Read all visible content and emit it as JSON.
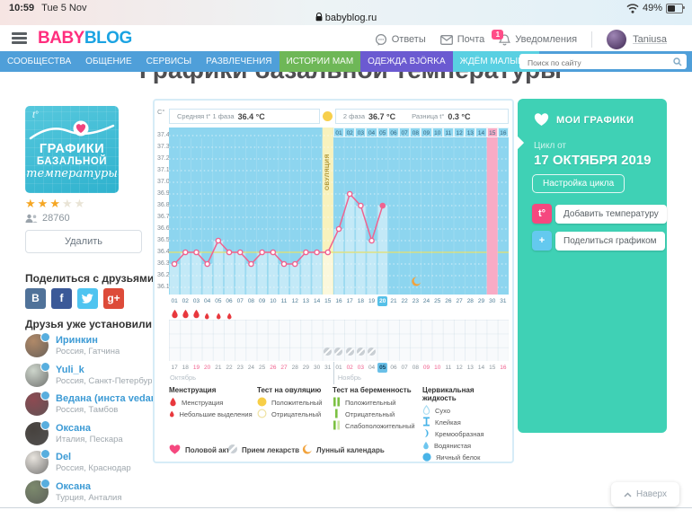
{
  "status_bar": {
    "time": "10:59",
    "date": "Tue 5 Nov",
    "url": "babyblog.ru",
    "battery": "49%"
  },
  "header": {
    "logo_part1": "BABY",
    "logo_part2": "BLOG",
    "menu": [
      {
        "icon": "chat-icon",
        "label": "Ответы"
      },
      {
        "icon": "mail-icon",
        "label": "Почта"
      },
      {
        "icon": "bell-icon",
        "label": "Уведомления",
        "badge": "1"
      }
    ],
    "user": {
      "name": "Taniusa"
    }
  },
  "nav": {
    "items": [
      {
        "label": "СООБЩЕСТВА"
      },
      {
        "label": "ОБЩЕНИЕ"
      },
      {
        "label": "СЕРВИСЫ"
      },
      {
        "label": "РАЗВЛЕЧЕНИЯ"
      },
      {
        "label": "ИСТОРИИ МАМ",
        "bg": "#6eb757"
      },
      {
        "label": "ОДЕЖДА BJÖRKA",
        "bg": "#6b5ad1"
      },
      {
        "label": "ЖДЁМ МАЛЫША",
        "bg": "#59d0e2"
      }
    ],
    "search_placeholder": "Поиск по сайту"
  },
  "page_title": "Графики базальной температуры",
  "sidebar": {
    "app_card": {
      "temp_symbol": "t°",
      "line1": "ГРАФИКИ",
      "line2": "БАЗАЛЬНОЙ",
      "line3": "температуры"
    },
    "rating": 3,
    "rating_max": 5,
    "installs": "28760",
    "delete_button": "Удалить",
    "share_heading": "Поделиться с друзьями",
    "social": [
      {
        "name": "vk",
        "bg": "#507299",
        "glyph": "B"
      },
      {
        "name": "facebook",
        "bg": "#3b5998",
        "glyph": "f"
      },
      {
        "name": "twitter",
        "bg": "#4fc4f0",
        "glyph": "bird"
      },
      {
        "name": "gplus",
        "bg": "#dd4b39",
        "glyph": "g+"
      }
    ],
    "friends_heading": "Друзья уже установили",
    "friends": [
      {
        "name": "Иринкин",
        "location": "Россия, Гатчина",
        "avatar_color": "#b08968"
      },
      {
        "name": "Yuli_k",
        "location": "Россия, Санкт-Петербур",
        "avatar_color": "#cdd5cb"
      },
      {
        "name": "Ведана (инста vedar",
        "location": "Россия, Тамбов",
        "avatar_color": "#8d4a52"
      },
      {
        "name": "Оксана",
        "location": "Италия, Пескара",
        "avatar_color": "#47423e"
      },
      {
        "name": "Del",
        "location": "Россия, Краснодар",
        "avatar_color": "#e8e4de"
      },
      {
        "name": "Оксана",
        "location": "Турция, Анталия",
        "avatar_color": "#7c8a6d"
      }
    ]
  },
  "chart_data": {
    "type": "line",
    "title": "График базальной температуры",
    "unit_label": "C°",
    "ylim": [
      36.1,
      37.4
    ],
    "yticks": [
      "37.4",
      "37.3",
      "37.2",
      "37.1",
      "37.0",
      "36.9",
      "36.8",
      "36.7",
      "36.6",
      "36.5",
      "36.4",
      "36.3",
      "36.2",
      "36.1"
    ],
    "days_in_cycle": 31,
    "temps_by_cycle_day": [
      36.3,
      36.4,
      36.4,
      36.3,
      36.5,
      36.4,
      36.4,
      36.3,
      36.4,
      36.4,
      36.3,
      36.3,
      36.4,
      36.4,
      36.4,
      36.6,
      36.9,
      36.8,
      36.5,
      36.8
    ],
    "today_cycle_day": 20,
    "ovulation_cycle_day": 15,
    "expected_period_cycle_day": 30,
    "avg_line_value": 36.4,
    "header_stats": {
      "avg1_label": "Средняя t° 1 фаза",
      "avg1_value": "36.4 °C",
      "avg2_label": "2 фаза",
      "avg2_value": "36.7 °C",
      "diff_label": "Разница t°",
      "diff_value": "0.3 °C"
    },
    "ovulation_label": "ОВУЛЯЦИЯ",
    "menstruation_heavy_days": [
      1,
      2,
      3
    ],
    "menstruation_light_days": [
      4,
      5,
      6
    ],
    "medication_days": [
      15,
      16,
      17,
      18,
      19
    ],
    "lunar_day": 23,
    "nov_day_headers": [
      "01",
      "02",
      "03",
      "04",
      "05",
      "06",
      "07",
      "08",
      "09",
      "10",
      "11",
      "12",
      "13",
      "14",
      "15",
      "16"
    ],
    "nov_header_period_day": "15",
    "calendar": {
      "month1_label": "Октябрь",
      "month2_label": "Ноябрь",
      "dates": [
        {
          "d": "17"
        },
        {
          "d": "18"
        },
        {
          "d": "19",
          "red": true
        },
        {
          "d": "20",
          "red": true
        },
        {
          "d": "21"
        },
        {
          "d": "22"
        },
        {
          "d": "23"
        },
        {
          "d": "24"
        },
        {
          "d": "25"
        },
        {
          "d": "26",
          "red": true
        },
        {
          "d": "27",
          "red": true
        },
        {
          "d": "28"
        },
        {
          "d": "29"
        },
        {
          "d": "30"
        },
        {
          "d": "31"
        },
        {
          "d": "01"
        },
        {
          "d": "02",
          "red": true
        },
        {
          "d": "03",
          "red": true
        },
        {
          "d": "04"
        },
        {
          "d": "05",
          "today": true
        },
        {
          "d": "06"
        },
        {
          "d": "07"
        },
        {
          "d": "08"
        },
        {
          "d": "09",
          "red": true
        },
        {
          "d": "10",
          "red": true
        },
        {
          "d": "11"
        },
        {
          "d": "12"
        },
        {
          "d": "13"
        },
        {
          "d": "14"
        },
        {
          "d": "15"
        },
        {
          "d": "16",
          "red": true
        }
      ]
    },
    "colors": {
      "plot_bg": "#8dd5ef",
      "bars_fill": "#c9eaf8",
      "line": "#ef6390",
      "ovulation_band": "#f8f2bd",
      "period_band": "#f8abc5",
      "avg_line": "#e6e06a"
    }
  },
  "legend": {
    "columns": [
      {
        "title": "Менструация",
        "items": [
          {
            "icon": "drop-large",
            "label": "Менструация"
          },
          {
            "icon": "drop-small",
            "label": "Небольшие выделения"
          }
        ]
      },
      {
        "title": "Тест на овуляцию",
        "items": [
          {
            "icon": "ovu-positive",
            "label": "Положительный"
          },
          {
            "icon": "ovu-negative",
            "label": "Отрицательный"
          }
        ]
      },
      {
        "title": "Тест на беременность",
        "items": [
          {
            "icon": "preg-positive",
            "label": "Положительный"
          },
          {
            "icon": "preg-negative",
            "label": "Отрицательный"
          },
          {
            "icon": "preg-weak",
            "label": "Слабоположительный"
          }
        ]
      },
      {
        "title": "Цервикальная жидкость",
        "items": [
          {
            "icon": "fluid-dry",
            "label": "Сухо"
          },
          {
            "icon": "fluid-sticky",
            "label": "Клейкая"
          },
          {
            "icon": "fluid-creamy",
            "label": "Кремообразная"
          },
          {
            "icon": "fluid-watery",
            "label": "Водянистая"
          },
          {
            "icon": "fluid-eggwhite",
            "label": "Яичный белок"
          }
        ]
      }
    ],
    "extra": [
      {
        "icon": "intercourse",
        "label": "Половой акт"
      },
      {
        "icon": "medication",
        "label": "Прием лекарств"
      },
      {
        "icon": "lunar",
        "label": "Лунный календарь"
      }
    ]
  },
  "panel": {
    "title": "МОИ ГРАФИКИ",
    "cycle_label": "Цикл от",
    "cycle_date": "17 ОКТЯБРЯ 2019",
    "settings_button": "Настройка цикла",
    "add_temp_button": "Добавить температуру",
    "share_button": "Поделиться графиком",
    "add_temp_icon": "t°",
    "share_icon": "+",
    "accent_pink": "#f5487f",
    "accent_blue": "#64c9ef",
    "bg": "#3fd1b5"
  },
  "back_to_top": "Наверх"
}
